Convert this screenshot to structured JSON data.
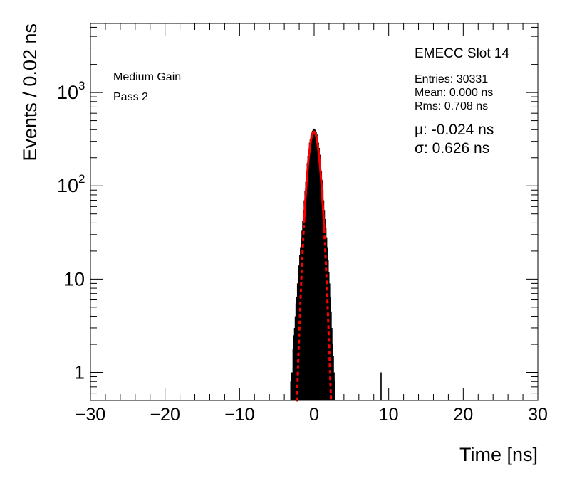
{
  "chart_data": {
    "type": "histogram",
    "title": "EMECC Slot 14",
    "xlabel": "Time [ns]",
    "ylabel": "Events / 0.02 ns",
    "yscale": "log",
    "xlim": [
      -30,
      30
    ],
    "ylim": [
      0.5,
      5500
    ],
    "x_ticks": [
      -30,
      -20,
      -10,
      0,
      10,
      20,
      30
    ],
    "x_tick_labels": [
      "−30",
      "−20",
      "−10",
      "0",
      "10",
      "20",
      "30"
    ],
    "y_ticks": [
      {
        "value": 1,
        "label": "1"
      },
      {
        "value": 10,
        "label": "10"
      },
      {
        "value": 100,
        "label": "10",
        "sup": "2"
      },
      {
        "value": 1000,
        "label": "10",
        "sup": "3"
      }
    ],
    "annotations": {
      "gain": "Medium Gain",
      "pass": "Pass 2",
      "entries": "Entries: 30331",
      "mean": "Mean: 0.000 ns",
      "rms": "Rms: 0.708 ns",
      "mu": "μ: -0.024 ns",
      "sigma": "σ: 0.626 ns"
    },
    "fit": {
      "type": "gaussian",
      "amplitude": 380,
      "mu": -0.024,
      "sigma": 0.626,
      "range": [
        -1.35,
        1.35
      ],
      "color": "#ff0000"
    },
    "histogram": {
      "color": "#000000",
      "bins": [
        {
          "x": -3.15,
          "y": 0.8
        },
        {
          "x": -3.05,
          "y": 1.0
        },
        {
          "x": -2.95,
          "y": 1.0
        },
        {
          "x": -2.85,
          "y": 1.8
        },
        {
          "x": -2.75,
          "y": 2.5
        },
        {
          "x": -2.65,
          "y": 3.0
        },
        {
          "x": -2.55,
          "y": 4.0
        },
        {
          "x": -2.45,
          "y": 5.5
        },
        {
          "x": -2.35,
          "y": 6.5
        },
        {
          "x": -2.25,
          "y": 9.0
        },
        {
          "x": -2.15,
          "y": 10.5
        },
        {
          "x": -2.05,
          "y": 14.0
        },
        {
          "x": -1.95,
          "y": 18.0
        },
        {
          "x": -1.85,
          "y": 22.0
        },
        {
          "x": -1.75,
          "y": 27.0
        },
        {
          "x": -1.65,
          "y": 33.0
        },
        {
          "x": -1.55,
          "y": 42.0
        },
        {
          "x": -1.45,
          "y": 55.0
        },
        {
          "x": -1.35,
          "y": 70.0
        },
        {
          "x": -1.25,
          "y": 88.0
        },
        {
          "x": -1.15,
          "y": 110.0
        },
        {
          "x": -1.05,
          "y": 140.0
        },
        {
          "x": -0.95,
          "y": 175.0
        },
        {
          "x": -0.85,
          "y": 210.0
        },
        {
          "x": -0.75,
          "y": 250.0
        },
        {
          "x": -0.65,
          "y": 290.0
        },
        {
          "x": -0.55,
          "y": 320.0
        },
        {
          "x": -0.45,
          "y": 350.0
        },
        {
          "x": -0.35,
          "y": 370.0
        },
        {
          "x": -0.25,
          "y": 390.0
        },
        {
          "x": -0.15,
          "y": 400.0
        },
        {
          "x": -0.05,
          "y": 410.0
        },
        {
          "x": 0.05,
          "y": 405.0
        },
        {
          "x": 0.15,
          "y": 395.0
        },
        {
          "x": 0.25,
          "y": 380.0
        },
        {
          "x": 0.35,
          "y": 355.0
        },
        {
          "x": 0.45,
          "y": 325.0
        },
        {
          "x": 0.55,
          "y": 290.0
        },
        {
          "x": 0.65,
          "y": 255.0
        },
        {
          "x": 0.75,
          "y": 215.0
        },
        {
          "x": 0.85,
          "y": 180.0
        },
        {
          "x": 0.95,
          "y": 145.0
        },
        {
          "x": 1.05,
          "y": 115.0
        },
        {
          "x": 1.15,
          "y": 90.0
        },
        {
          "x": 1.25,
          "y": 70.0
        },
        {
          "x": 1.35,
          "y": 55.0
        },
        {
          "x": 1.45,
          "y": 44.0
        },
        {
          "x": 1.55,
          "y": 35.0
        },
        {
          "x": 1.65,
          "y": 28.0
        },
        {
          "x": 1.75,
          "y": 22.0
        },
        {
          "x": 1.85,
          "y": 16.0
        },
        {
          "x": 1.95,
          "y": 12.0
        },
        {
          "x": 2.05,
          "y": 9.0
        },
        {
          "x": 2.15,
          "y": 6.5
        },
        {
          "x": 2.25,
          "y": 4.5
        },
        {
          "x": 2.35,
          "y": 3.0
        },
        {
          "x": 2.45,
          "y": 2.0
        },
        {
          "x": 2.55,
          "y": 1.5
        },
        {
          "x": 2.65,
          "y": 1.0
        },
        {
          "x": 2.75,
          "y": 0.8
        },
        {
          "x": 8.95,
          "y": 1.0
        }
      ]
    }
  }
}
